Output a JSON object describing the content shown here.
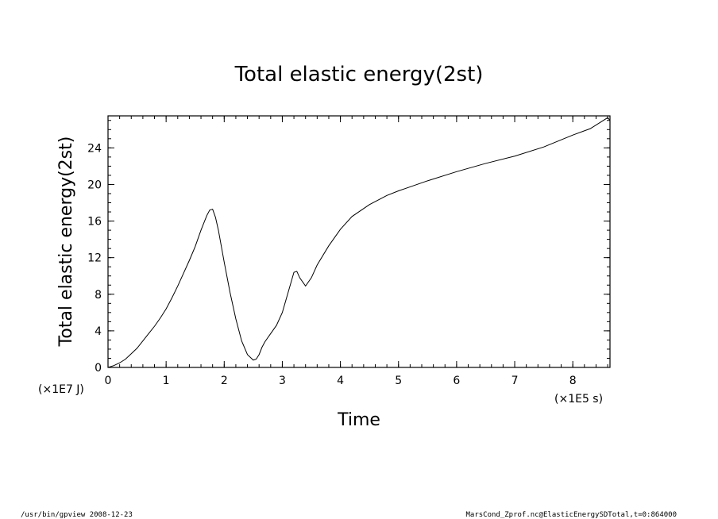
{
  "chart_data": {
    "type": "line",
    "title": "Total elastic energy(2st)",
    "xlabel": "Time",
    "ylabel": "Total elastic energy(2st)",
    "x_unit": "(×1E5 s)",
    "y_unit": "(×1E7 J)",
    "xlim": [
      0,
      8.64
    ],
    "ylim": [
      0,
      27.5
    ],
    "x_ticks": [
      0,
      1,
      2,
      3,
      4,
      5,
      6,
      7,
      8
    ],
    "y_ticks": [
      0,
      4,
      8,
      12,
      16,
      20,
      24
    ],
    "grid": false,
    "series": [
      {
        "x": [
          0,
          0.1,
          0.2,
          0.3,
          0.4,
          0.5,
          0.6,
          0.7,
          0.8,
          0.9,
          1.0,
          1.1,
          1.2,
          1.3,
          1.4,
          1.5,
          1.6,
          1.7,
          1.75,
          1.8,
          1.85,
          1.9,
          2.0,
          2.1,
          2.2,
          2.3,
          2.4,
          2.5,
          2.55,
          2.6,
          2.65,
          2.7,
          2.8,
          2.9,
          3.0,
          3.1,
          3.2,
          3.25,
          3.3,
          3.4,
          3.5,
          3.6,
          3.8,
          4.0,
          4.2,
          4.5,
          4.8,
          5.0,
          5.5,
          6.0,
          6.5,
          7.0,
          7.5,
          8.0,
          8.3,
          8.5,
          8.6,
          8.64
        ],
        "y": [
          0,
          0.2,
          0.5,
          0.9,
          1.5,
          2.1,
          2.9,
          3.7,
          4.5,
          5.4,
          6.4,
          7.6,
          8.9,
          10.3,
          11.7,
          13.2,
          15.0,
          16.6,
          17.2,
          17.3,
          16.4,
          15.0,
          11.5,
          8.2,
          5.3,
          2.9,
          1.4,
          0.8,
          0.9,
          1.4,
          2.2,
          2.8,
          3.7,
          4.6,
          6.0,
          8.2,
          10.4,
          10.5,
          9.8,
          8.9,
          9.8,
          11.2,
          13.3,
          15.1,
          16.5,
          17.8,
          18.8,
          19.3,
          20.4,
          21.4,
          22.3,
          23.1,
          24.1,
          25.4,
          26.1,
          26.9,
          27.3,
          27.0
        ]
      }
    ]
  },
  "footer": {
    "left": "/usr/bin/gpview   2008-12-23",
    "right": "MarsCond_Zprof.nc@ElasticEnergySDTotal,t=0:864000"
  }
}
